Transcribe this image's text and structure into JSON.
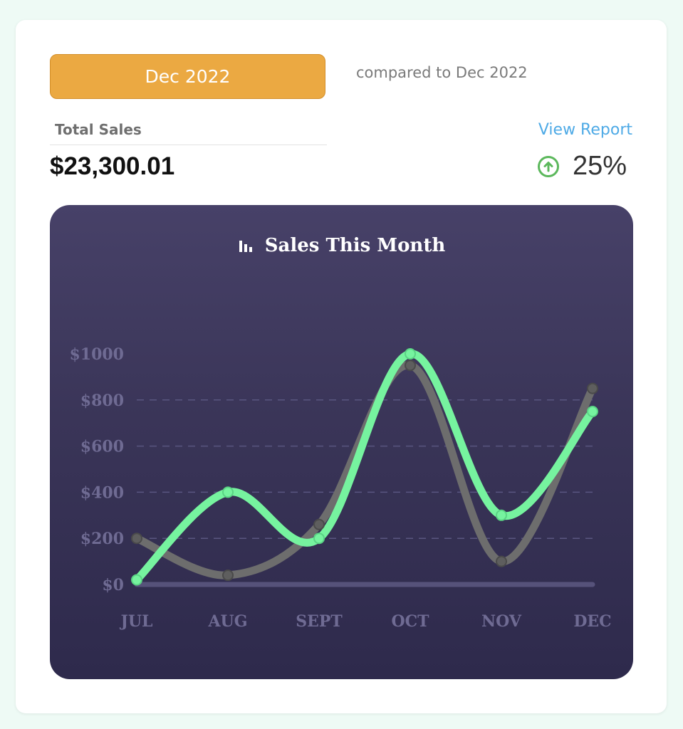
{
  "header": {
    "period_label": "Dec 2022",
    "compare_text": "compared to Dec 2022",
    "total_label": "Total Sales",
    "total_value": "$23,300.01",
    "view_report": "View Report",
    "change_value": "25%"
  },
  "colors": {
    "accent": "#eba942",
    "link": "#4eaae6",
    "up": "#5cb85c",
    "current_series": "#76f39f",
    "previous_series": "#6d6d6d"
  },
  "icons": {
    "chart_title": "bar-chart-icon",
    "change": "arrow-up-circle-icon"
  },
  "chart_data": {
    "type": "line",
    "title": "Sales This Month",
    "categories": [
      "JUL",
      "AUG",
      "SEPT",
      "OCT",
      "NOV",
      "DEC"
    ],
    "y_ticks": [
      "$0",
      "$200",
      "$400",
      "$600",
      "$800",
      "$1000"
    ],
    "ylim": [
      0,
      1000
    ],
    "grid": "dashed horizontal",
    "series": [
      {
        "key": "previous",
        "values": [
          200,
          40,
          260,
          950,
          100,
          850
        ]
      },
      {
        "key": "current",
        "values": [
          20,
          400,
          200,
          1000,
          300,
          750
        ]
      }
    ]
  }
}
